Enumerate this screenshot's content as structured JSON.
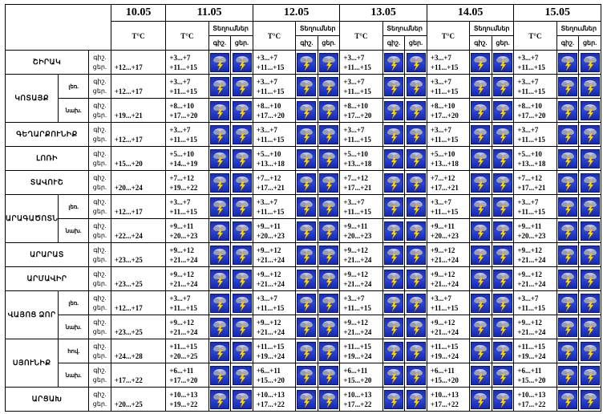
{
  "dates": [
    "10.05",
    "11.05",
    "12.05",
    "13.05",
    "14.05",
    "15.05"
  ],
  "header": {
    "temp": "T°C",
    "precip": "Տեղումներ",
    "night": "գիշ.",
    "day": "ցեր."
  },
  "labels": {
    "night": "գիշ.",
    "day": "ցեր."
  },
  "icon": "storm-rain-icon",
  "colors": {
    "icon_bg": "#2a45d8",
    "border": "#000000"
  },
  "regions": [
    {
      "name": "ՇԻՐԱԿ",
      "rows": [
        {
          "sub": "",
          "t10": "+12...+17",
          "t": [
            [
              "+3...+7",
              "+11...+15"
            ],
            [
              "+3...+7",
              "+11...+15"
            ],
            [
              "+3...+7",
              "+11...+15"
            ],
            [
              "+3...+7",
              "+11...+15"
            ],
            [
              "+3...+7",
              "+11...+15"
            ]
          ]
        }
      ]
    },
    {
      "name": "ԿՈՏԱՅՔ",
      "rows": [
        {
          "sub": "լեռ.",
          "t10": "+12...+17",
          "t": [
            [
              "+3...+7",
              "+11...+15"
            ],
            [
              "+3...+7",
              "+11...+15"
            ],
            [
              "+3...+7",
              "+11...+15"
            ],
            [
              "+3...+7",
              "+11...+15"
            ],
            [
              "+3...+7",
              "+11...+15"
            ]
          ]
        },
        {
          "sub": "նախ.",
          "t10": "+19...+21",
          "t": [
            [
              "+8...+10",
              "+17...+20"
            ],
            [
              "+8...+10",
              "+17...+20"
            ],
            [
              "+8...+10",
              "+17...+20"
            ],
            [
              "+8...+10",
              "+17...+20"
            ],
            [
              "+8...+10",
              "+17...+20"
            ]
          ]
        }
      ]
    },
    {
      "name": "ԳԵՂԱՐՔՈՒՆԻՔ",
      "rows": [
        {
          "sub": "",
          "t10": "+12...+17",
          "t": [
            [
              "+3...+7",
              "+11...+15"
            ],
            [
              "+3...+7",
              "+11...+15"
            ],
            [
              "+3...+7",
              "+11...+15"
            ],
            [
              "+3...+7",
              "+11...+15"
            ],
            [
              "+3...+7",
              "+11...+15"
            ]
          ]
        }
      ]
    },
    {
      "name": "ԼՈՌԻ",
      "rows": [
        {
          "sub": "",
          "t10": "+15...+20",
          "t": [
            [
              "+5...+10",
              "+14...+19"
            ],
            [
              "+5...+10",
              "+13...+18"
            ],
            [
              "+5...+10",
              "+13...+18"
            ],
            [
              "+5...+10",
              "+13...+18"
            ],
            [
              "+5...+10",
              "+13...+18"
            ]
          ]
        }
      ]
    },
    {
      "name": "ՏԱՎՈՒՇ",
      "rows": [
        {
          "sub": "",
          "t10": "+20...+24",
          "t": [
            [
              "+7...+12",
              "+19...+22"
            ],
            [
              "+7...+12",
              "+17...+21"
            ],
            [
              "+7...+12",
              "+17...+21"
            ],
            [
              "+7...+12",
              "+17...+21"
            ],
            [
              "+7...+12",
              "+17...+21"
            ]
          ]
        }
      ]
    },
    {
      "name": "ԱՐԱԳԱԾՈՏՆ",
      "rows": [
        {
          "sub": "լեռ.",
          "t10": "+12...+17",
          "t": [
            [
              "+3...+7",
              "+11...+15"
            ],
            [
              "+3...+7",
              "+11...+15"
            ],
            [
              "+3...+7",
              "+11...+15"
            ],
            [
              "+3...+7",
              "+11...+15"
            ],
            [
              "+3...+7",
              "+11...+15"
            ]
          ]
        },
        {
          "sub": "նախ.",
          "t10": "+22...+24",
          "t": [
            [
              "+9...+11",
              "+20...+23"
            ],
            [
              "+9...+11",
              "+20...+23"
            ],
            [
              "+9...+11",
              "+20...+23"
            ],
            [
              "+9...+11",
              "+20...+23"
            ],
            [
              "+9...+11",
              "+20...+23"
            ]
          ]
        }
      ]
    },
    {
      "name": "ԱՐԱՐԱՏ",
      "rows": [
        {
          "sub": "",
          "t10": "+23...+25",
          "t": [
            [
              "+9...+12",
              "+21...+24"
            ],
            [
              "+9...+12",
              "+21...+24"
            ],
            [
              "+9...+12",
              "+21...+24"
            ],
            [
              "+9...+12",
              "+21...+24"
            ],
            [
              "+9...+12",
              "+21...+24"
            ]
          ]
        }
      ]
    },
    {
      "name": "ԱՐՄԱՎԻՐ",
      "rows": [
        {
          "sub": "",
          "t10": "+23...+25",
          "t": [
            [
              "+9...+12",
              "+21...+24"
            ],
            [
              "+9...+12",
              "+21...+24"
            ],
            [
              "+9...+12",
              "+21...+24"
            ],
            [
              "+9...+12",
              "+21...+24"
            ],
            [
              "+9...+12",
              "+21...+24"
            ]
          ]
        }
      ]
    },
    {
      "name": "ՎԱՅՈՑ ՁՈՐ",
      "rows": [
        {
          "sub": "լեռ.",
          "t10": "+12...+17",
          "t": [
            [
              "+3...+7",
              "+11...+15"
            ],
            [
              "+3...+7",
              "+11...+15"
            ],
            [
              "+3...+7",
              "+11...+15"
            ],
            [
              "+3...+7",
              "+11...+15"
            ],
            [
              "+3...+7",
              "+11...+15"
            ]
          ]
        },
        {
          "sub": "նախ.",
          "t10": "+23...+25",
          "t": [
            [
              "+9...+12",
              "+21...+24"
            ],
            [
              "+9...+12",
              "+21...+24"
            ],
            [
              "+9...+12",
              "+21...+24"
            ],
            [
              "+9...+12",
              "+21...+24"
            ],
            [
              "+9...+12",
              "+21...+24"
            ]
          ]
        }
      ]
    },
    {
      "name": "ՍՅՈՒՆԻՔ",
      "rows": [
        {
          "sub": "հով.",
          "t10": "+24...+28",
          "t": [
            [
              "+11...+15",
              "+20...+25"
            ],
            [
              "+11...+15",
              "+19...+24"
            ],
            [
              "+11...+15",
              "+19...+24"
            ],
            [
              "+11...+15",
              "+19...+24"
            ],
            [
              "+11...+15",
              "+19...+24"
            ]
          ]
        },
        {
          "sub": "նախ.",
          "t10": "+17...+22",
          "t": [
            [
              "+6...+11",
              "+17...+20"
            ],
            [
              "+6...+11",
              "+15...+20"
            ],
            [
              "+6...+11",
              "+15...+20"
            ],
            [
              "+6...+11",
              "+15...+20"
            ],
            [
              "+6...+11",
              "+15...+20"
            ]
          ]
        }
      ]
    },
    {
      "name": "ԱՐՑԱԽ",
      "rows": [
        {
          "sub": "",
          "t10": "+20...+25",
          "t": [
            [
              "+10...+13",
              "+19...+22"
            ],
            [
              "+10...+13",
              "+17...+22"
            ],
            [
              "+10...+13",
              "+17...+22"
            ],
            [
              "+10...+13",
              "+17...+22"
            ],
            [
              "+10...+13",
              "+17...+22"
            ]
          ]
        }
      ]
    }
  ]
}
